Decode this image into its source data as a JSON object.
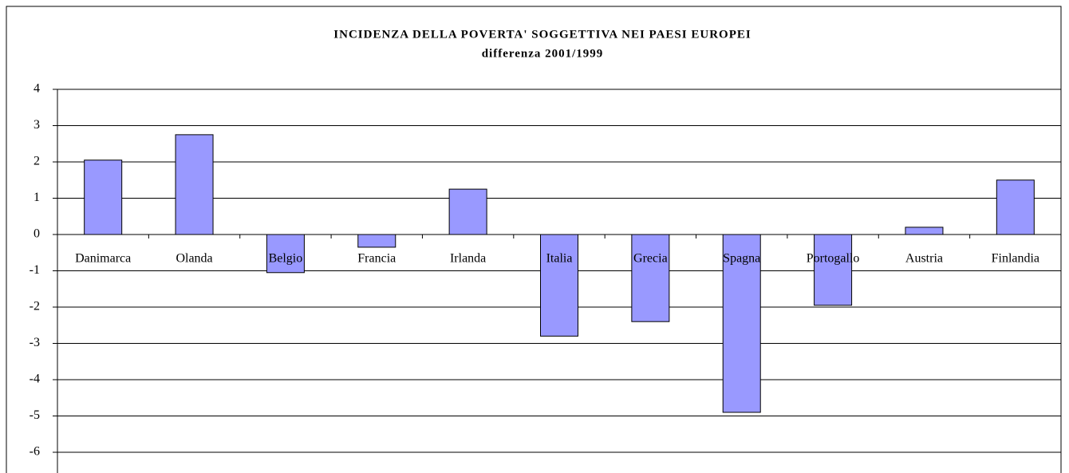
{
  "chart_data": {
    "type": "bar",
    "title": "INCIDENZA DELLA POVERTA' SOGGETTIVA NEI PAESI EUROPEI",
    "subtitle": "differenza 2001/1999",
    "categories": [
      "Danimarca",
      "Olanda",
      "Belgio",
      "Francia",
      "Irlanda",
      "Italia",
      "Grecia",
      "Spagna",
      "Portogallo",
      "Austria",
      "Finlandia"
    ],
    "values": [
      2.05,
      2.75,
      -1.05,
      -0.35,
      1.25,
      -2.8,
      -2.4,
      -4.9,
      -1.95,
      0.2,
      1.5
    ],
    "color": "#9999ff",
    "ylim": [
      -6,
      4
    ],
    "yticks": [
      -6,
      -5,
      -4,
      -3,
      -2,
      -1,
      0,
      1,
      2,
      3,
      4
    ],
    "grid": true
  }
}
